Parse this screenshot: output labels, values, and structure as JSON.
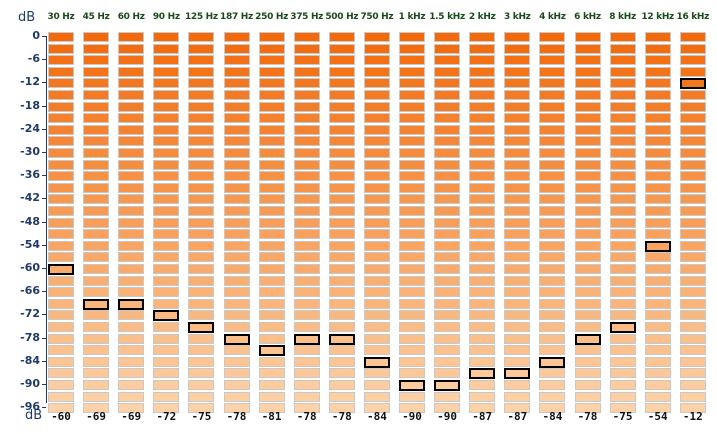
{
  "axis": {
    "unit_top": "dB",
    "unit_bottom": "dB",
    "ticks": [
      "0",
      "-6",
      "-12",
      "-18",
      "-24",
      "-30",
      "-36",
      "-42",
      "-48",
      "-54",
      "-60",
      "-66",
      "-72",
      "-78",
      "-84",
      "-90",
      "-96"
    ]
  },
  "bands": [
    {
      "freq": "30 Hz",
      "level": "-60"
    },
    {
      "freq": "45 Hz",
      "level": "-69"
    },
    {
      "freq": "60 Hz",
      "level": "-69"
    },
    {
      "freq": "90 Hz",
      "level": "-72"
    },
    {
      "freq": "125 Hz",
      "level": "-75"
    },
    {
      "freq": "187 Hz",
      "level": "-78"
    },
    {
      "freq": "250 Hz",
      "level": "-81"
    },
    {
      "freq": "375 Hz",
      "level": "-78"
    },
    {
      "freq": "500 Hz",
      "level": "-78"
    },
    {
      "freq": "750 Hz",
      "level": "-84"
    },
    {
      "freq": "1 kHz",
      "level": "-90"
    },
    {
      "freq": "1.5 kHz",
      "level": "-90"
    },
    {
      "freq": "2 kHz",
      "level": "-87"
    },
    {
      "freq": "3 kHz",
      "level": "-87"
    },
    {
      "freq": "4 kHz",
      "level": "-84"
    },
    {
      "freq": "6 kHz",
      "level": "-78"
    },
    {
      "freq": "8 kHz",
      "level": "-75"
    },
    {
      "freq": "12 kHz",
      "level": "-54"
    },
    {
      "freq": "16 kHz",
      "level": "-12"
    }
  ],
  "colors": {
    "top": "#f26a0a",
    "bottom": "#fdd2a8",
    "peak_border": "#000000"
  }
}
